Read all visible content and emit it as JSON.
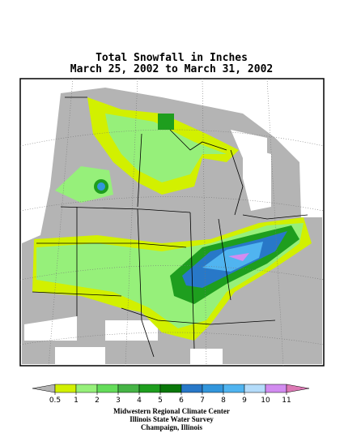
{
  "header": {
    "title_lines": [
      "Total Snowfall in Inches",
      "March 25, 2002 to March 31, 2002"
    ]
  },
  "legend": {
    "levels": [
      0.5,
      1,
      2,
      3,
      4,
      5,
      6,
      7,
      8,
      9,
      10,
      11
    ],
    "colors": [
      "#b4b4b4",
      "#d2f000",
      "#96f07a",
      "#64dc5a",
      "#46b446",
      "#1e9e1e",
      "#0a780a",
      "#2878c8",
      "#3296dc",
      "#50b4f0",
      "#b4dcfa",
      "#d28cf0",
      "#dc78b4"
    ]
  },
  "footer": {
    "lines": [
      "Midwestern Regional Climate Center",
      "Illinois State Water Survey",
      "Champaign, Illinois"
    ]
  }
}
